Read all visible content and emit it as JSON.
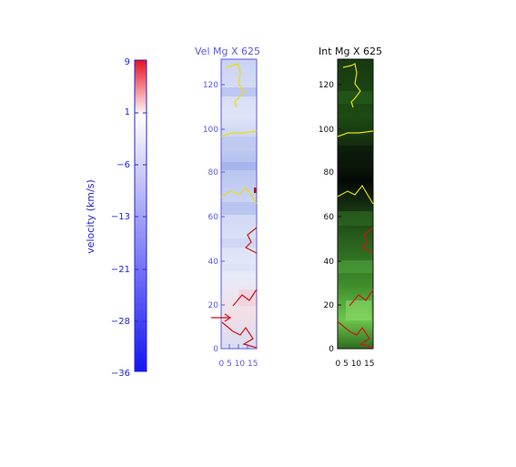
{
  "colorbar": {
    "label": "velocity (km/s)",
    "ticks": [
      "9",
      "1",
      "−6",
      "−13",
      "−21",
      "−28",
      "−36"
    ],
    "colors": {
      "top": "#e8111e",
      "middle": "#ffffff",
      "bottom": "#1515f0",
      "text": "#2424d8"
    }
  },
  "panel_velocity": {
    "title": "Vel Mg X 625",
    "y_ticks": [
      "120",
      "100",
      "80",
      "60",
      "40",
      "20",
      "0"
    ],
    "x_ticks": "0 5 10 15",
    "text_color": "#5a5ae0"
  },
  "panel_intensity": {
    "title": "Int Mg X 625",
    "y_ticks": [
      "120",
      "100",
      "80",
      "60",
      "40",
      "20",
      "0"
    ],
    "x_ticks": "0 5 10 15",
    "text_color": "#111111"
  },
  "contours": {
    "upper": "#e8e000",
    "lower": "#d01414",
    "arrow": "#d01414"
  }
}
